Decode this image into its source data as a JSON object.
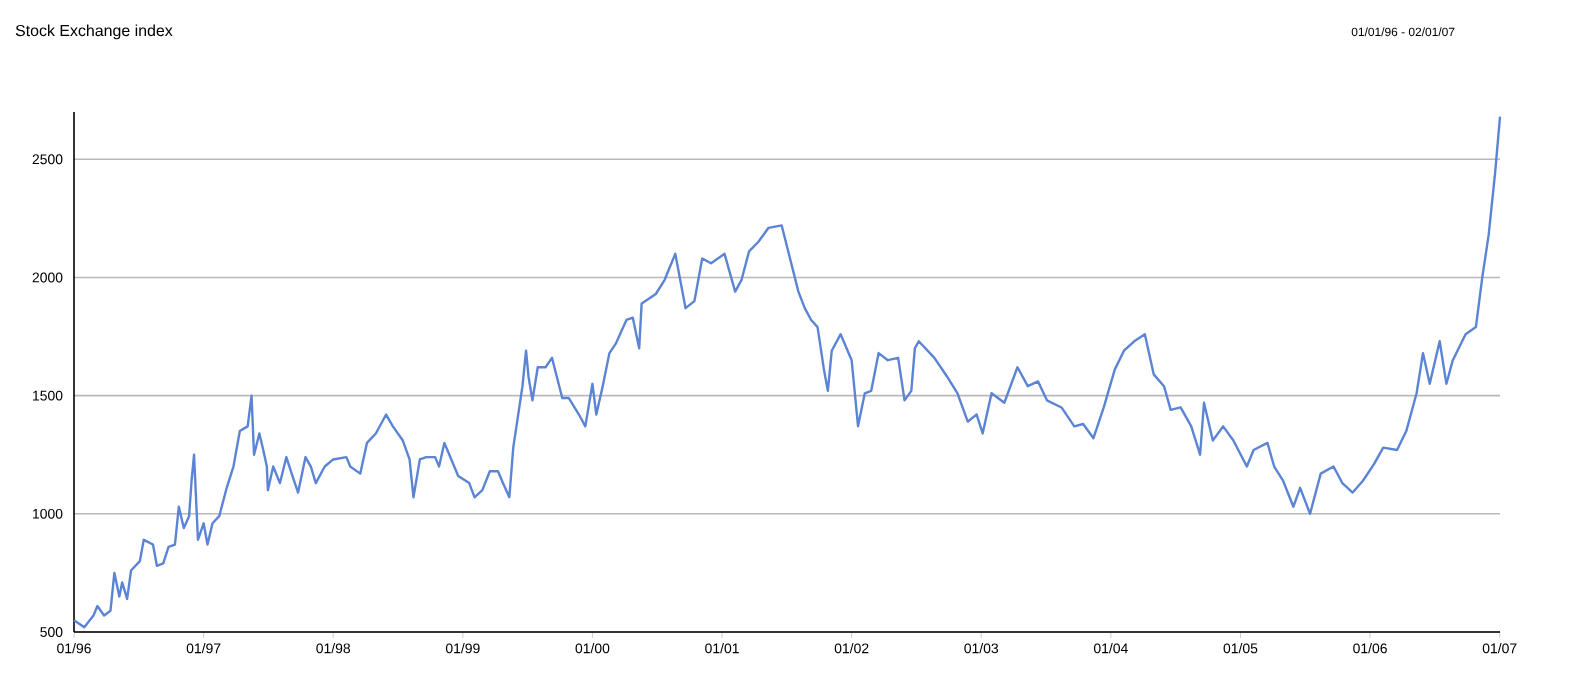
{
  "chart_data": {
    "type": "line",
    "title": "Stock Exchange index",
    "subtitle": "01/01/96 - 02/01/07",
    "x": [
      "1996-01-01",
      "1996-01-30",
      "1996-02-25",
      "1996-03-07",
      "1996-03-26",
      "1996-04-13",
      "1996-04-24",
      "1996-05-08",
      "1996-05-16",
      "1996-05-30",
      "1996-06-10",
      "1996-07-05",
      "1996-07-16",
      "1996-08-11",
      "1996-08-22",
      "1996-09-09",
      "1996-09-24",
      "1996-10-12",
      "1996-10-23",
      "1996-11-06",
      "1996-11-21",
      "1996-11-28",
      "1996-12-05",
      "1996-12-16",
      "1997-01-01",
      "1997-01-12",
      "1997-01-26",
      "1997-02-14",
      "1997-03-07",
      "1997-03-26",
      "1997-04-13",
      "1997-05-05",
      "1997-05-16",
      "1997-05-23",
      "1997-06-07",
      "1997-06-18",
      "1997-06-28",
      "1997-07-01",
      "1997-07-16",
      "1997-08-04",
      "1997-08-22",
      "1997-09-06",
      "1997-09-24",
      "1997-10-15",
      "1997-10-30",
      "1997-11-13",
      "1997-12-08",
      "1998-01-01",
      "1998-02-07",
      "1998-02-18",
      "1998-03-18",
      "1998-04-06",
      "1998-05-01",
      "1998-05-30",
      "1998-06-18",
      "1998-07-16",
      "1998-08-04",
      "1998-08-15",
      "1998-09-02",
      "1998-09-20",
      "1998-10-15",
      "1998-10-26",
      "1998-11-10",
      "1998-11-24",
      "1998-12-19",
      "1999-01-19",
      "1999-02-03",
      "1999-02-25",
      "1999-03-18",
      "1999-04-10",
      "1999-04-24",
      "1999-05-12",
      "1999-05-23",
      "1999-06-18",
      "1999-06-28",
      "1999-07-05",
      "1999-07-16",
      "1999-07-31",
      "1999-08-22",
      "1999-09-09",
      "1999-10-08",
      "1999-10-26",
      "1999-11-24",
      "1999-12-12",
      "2000-01-01",
      "2000-01-12",
      "2000-01-30",
      "2000-02-18",
      "2000-03-07",
      "2000-04-06",
      "2000-04-24",
      "2000-05-12",
      "2000-05-19",
      "2000-06-28",
      "2000-07-23",
      "2000-08-22",
      "2000-09-20",
      "2000-10-15",
      "2000-11-06",
      "2000-12-01",
      "2001-01-08",
      "2001-02-07",
      "2001-02-25",
      "2001-03-18",
      "2001-04-13",
      "2001-05-12",
      "2001-06-18",
      "2001-08-04",
      "2001-08-22",
      "2001-09-09",
      "2001-09-27",
      "2001-10-15",
      "2001-10-26",
      "2001-11-06",
      "2001-12-01",
      "2002-01-01",
      "2002-01-19",
      "2002-02-07",
      "2002-02-25",
      "2002-03-18",
      "2002-04-13",
      "2002-05-12",
      "2002-05-30",
      "2002-06-18",
      "2002-06-28",
      "2002-07-09",
      "2002-08-22",
      "2002-09-27",
      "2002-10-26",
      "2002-11-24",
      "2002-12-19",
      "2003-01-05",
      "2003-01-30",
      "2003-03-07",
      "2003-04-13",
      "2003-05-12",
      "2003-06-10",
      "2003-07-05",
      "2003-08-15",
      "2003-09-20",
      "2003-10-15",
      "2003-11-13",
      "2003-12-12",
      "2004-01-12",
      "2004-02-07",
      "2004-03-07",
      "2004-04-06",
      "2004-05-01",
      "2004-05-30",
      "2004-06-18",
      "2004-07-16",
      "2004-08-15",
      "2004-09-09",
      "2004-09-20",
      "2004-10-15",
      "2004-11-13",
      "2004-12-12",
      "2005-01-19",
      "2005-02-07",
      "2005-03-18",
      "2005-04-06",
      "2005-05-01",
      "2005-05-30",
      "2005-06-18",
      "2005-07-16",
      "2005-08-15",
      "2005-09-20",
      "2005-10-15",
      "2005-11-13",
      "2005-12-12",
      "2006-01-12",
      "2006-02-07",
      "2006-03-18",
      "2006-04-13",
      "2006-05-12",
      "2006-05-30",
      "2006-06-18",
      "2006-07-16",
      "2006-08-04",
      "2006-08-22",
      "2006-09-27",
      "2006-10-26",
      "2006-11-13",
      "2006-12-01",
      "2006-12-19",
      "2007-01-02"
    ],
    "values": [
      550,
      520,
      570,
      610,
      570,
      590,
      750,
      650,
      710,
      640,
      760,
      800,
      890,
      870,
      780,
      790,
      860,
      870,
      1030,
      940,
      990,
      1140,
      1250,
      890,
      960,
      870,
      960,
      990,
      1110,
      1200,
      1350,
      1370,
      1500,
      1250,
      1340,
      1270,
      1200,
      1100,
      1200,
      1130,
      1240,
      1170,
      1090,
      1240,
      1200,
      1130,
      1200,
      1230,
      1240,
      1200,
      1170,
      1300,
      1340,
      1420,
      1370,
      1310,
      1230,
      1070,
      1230,
      1240,
      1240,
      1200,
      1300,
      1250,
      1160,
      1130,
      1070,
      1100,
      1180,
      1180,
      1130,
      1070,
      1280,
      1540,
      1690,
      1580,
      1480,
      1620,
      1620,
      1660,
      1490,
      1490,
      1420,
      1370,
      1550,
      1420,
      1540,
      1680,
      1720,
      1820,
      1830,
      1700,
      1890,
      1930,
      1990,
      2100,
      1870,
      1900,
      2080,
      2060,
      2100,
      1940,
      1990,
      2110,
      2150,
      2210,
      2220,
      1940,
      1870,
      1820,
      1790,
      1610,
      1520,
      1690,
      1760,
      1650,
      1370,
      1510,
      1520,
      1680,
      1650,
      1660,
      1480,
      1520,
      1700,
      1730,
      1660,
      1580,
      1510,
      1390,
      1420,
      1340,
      1510,
      1470,
      1620,
      1540,
      1560,
      1480,
      1450,
      1370,
      1380,
      1320,
      1450,
      1610,
      1690,
      1730,
      1760,
      1590,
      1540,
      1440,
      1450,
      1370,
      1250,
      1470,
      1310,
      1370,
      1310,
      1200,
      1270,
      1300,
      1200,
      1140,
      1030,
      1110,
      1000,
      1170,
      1200,
      1130,
      1090,
      1140,
      1210,
      1280,
      1270,
      1350,
      1510,
      1680,
      1550,
      1730,
      1550,
      1650,
      1760,
      1790,
      2000,
      2180,
      2440,
      2680
    ],
    "color": "#5b84d4",
    "xlim": [
      "1996-01-01",
      "2007-01-02"
    ],
    "xticks": [
      {
        "value": "1996-01-01",
        "label": "01/96"
      },
      {
        "value": "1997-01-01",
        "label": "01/97"
      },
      {
        "value": "1998-01-01",
        "label": "01/98"
      },
      {
        "value": "1999-01-01",
        "label": "01/99"
      },
      {
        "value": "2000-01-01",
        "label": "01/00"
      },
      {
        "value": "2001-01-01",
        "label": "01/01"
      },
      {
        "value": "2002-01-01",
        "label": "01/02"
      },
      {
        "value": "2003-01-01",
        "label": "01/03"
      },
      {
        "value": "2004-01-01",
        "label": "01/04"
      },
      {
        "value": "2005-01-01",
        "label": "01/05"
      },
      {
        "value": "2006-01-01",
        "label": "01/06"
      },
      {
        "value": "2007-01-01",
        "label": "01/07"
      }
    ],
    "ylim": [
      500,
      2700
    ],
    "yticks": [
      500,
      1000,
      1500,
      2000,
      2500
    ],
    "grid": "y"
  }
}
